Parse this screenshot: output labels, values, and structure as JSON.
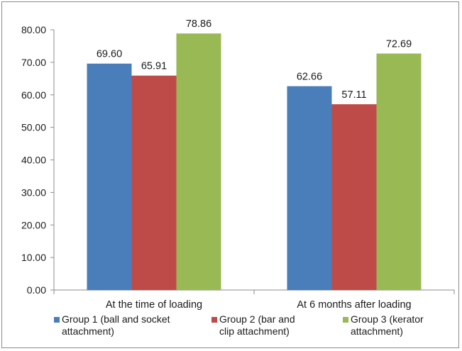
{
  "chart_data": {
    "type": "bar",
    "title": "",
    "xlabel": "",
    "ylabel": "",
    "ylim": [
      0,
      80
    ],
    "ytick_step": 10,
    "ytick_labels": [
      "0.00",
      "10.00",
      "20.00",
      "30.00",
      "40.00",
      "50.00",
      "60.00",
      "70.00",
      "80.00"
    ],
    "grid": false,
    "legend_position": "bottom",
    "categories": [
      "At the time of loading",
      "At 6 months after loading"
    ],
    "series": [
      {
        "name": "Group 1 (ball and socket attachment)",
        "legend_lines": [
          "Group 1 (ball and socket",
          "attachment)"
        ],
        "color": "#4a7ebb",
        "values": [
          69.6,
          62.66
        ],
        "value_labels": [
          "69.60",
          "62.66"
        ]
      },
      {
        "name": "Group 2 (bar and clip attachment)",
        "legend_lines": [
          "Group 2 (bar and",
          "clip attachment)"
        ],
        "color": "#be4b48",
        "values": [
          65.91,
          57.11
        ],
        "value_labels": [
          "65.91",
          "57.11"
        ]
      },
      {
        "name": "Group 3 (kerator attachment)",
        "legend_lines": [
          "Group 3 (kerator",
          "attachment)"
        ],
        "color": "#98b954",
        "values": [
          78.86,
          72.69
        ],
        "value_labels": [
          "78.86",
          "72.69"
        ]
      }
    ]
  }
}
